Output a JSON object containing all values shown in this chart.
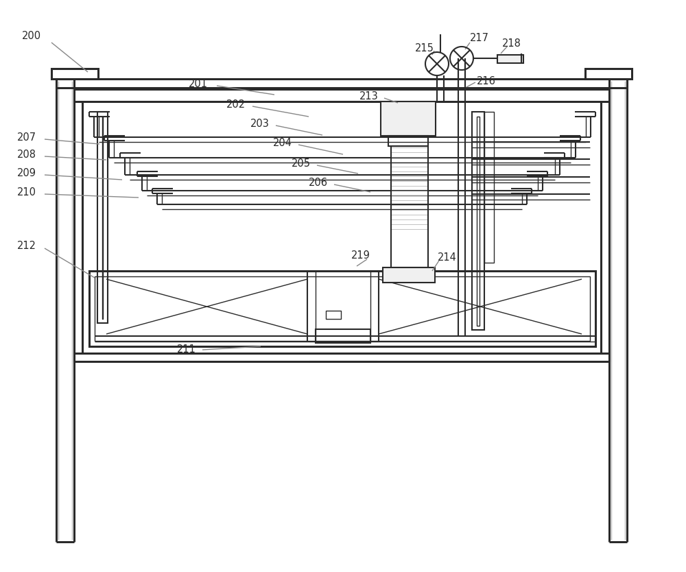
{
  "bg_color": "#ffffff",
  "lc": "#2a2a2a",
  "lc_gray": "#888888",
  "lw_thick": 2.2,
  "lw_med": 1.5,
  "lw_thin": 1.0,
  "lw_vt": 0.7
}
